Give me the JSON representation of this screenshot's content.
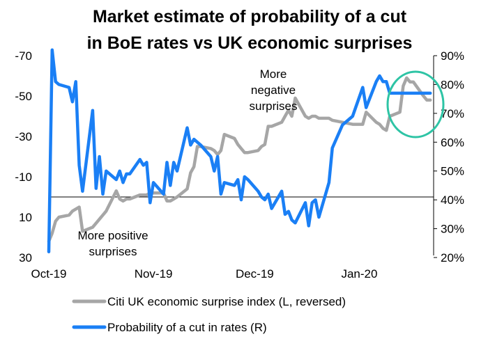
{
  "chart_data": {
    "type": "line",
    "title_line1": "Market estimate of probability of a cut",
    "title_line2": "in BoE rates vs UK economic surprises",
    "x_ticks": [
      "Oct-19",
      "Nov-19",
      "Dec-19",
      "Jan-20"
    ],
    "left_axis": {
      "reversed": true,
      "range": [
        -70,
        30
      ],
      "ticks": [
        "-70",
        "-50",
        "-30",
        "-10",
        "10",
        "30"
      ]
    },
    "right_axis": {
      "range": [
        20,
        90
      ],
      "unit": "%",
      "ticks": [
        "90%",
        "80%",
        "70%",
        "60%",
        "50%",
        "40%",
        "30%",
        "20%"
      ]
    },
    "annotations": {
      "negative": [
        "More",
        "negative",
        "surprises"
      ],
      "positive": [
        "More positive",
        "surprises"
      ]
    },
    "highlight_color": "#2ec4a5",
    "series": [
      {
        "name": "Citi UK economic surprise index (L, reversed)",
        "axis": "left",
        "color": "#a6a6a6",
        "x": [
          "2019-10-01",
          "2019-10-02",
          "2019-10-03",
          "2019-10-04",
          "2019-10-07",
          "2019-10-08",
          "2019-10-09",
          "2019-10-10",
          "2019-10-11",
          "2019-10-14",
          "2019-10-15",
          "2019-10-16",
          "2019-10-17",
          "2019-10-18",
          "2019-10-21",
          "2019-10-22",
          "2019-10-23",
          "2019-10-24",
          "2019-10-25",
          "2019-10-28",
          "2019-10-29",
          "2019-10-30",
          "2019-10-31",
          "2019-11-01",
          "2019-11-04",
          "2019-11-05",
          "2019-11-06",
          "2019-11-07",
          "2019-11-08",
          "2019-11-11",
          "2019-11-12",
          "2019-11-13",
          "2019-11-14",
          "2019-11-15",
          "2019-11-18",
          "2019-11-19",
          "2019-11-20",
          "2019-11-21",
          "2019-11-22",
          "2019-11-25",
          "2019-11-26",
          "2019-11-27",
          "2019-11-28",
          "2019-11-29",
          "2019-12-02",
          "2019-12-03",
          "2019-12-04",
          "2019-12-05",
          "2019-12-06",
          "2019-12-09",
          "2019-12-10",
          "2019-12-11",
          "2019-12-12",
          "2019-12-13",
          "2019-12-16",
          "2019-12-17",
          "2019-12-18",
          "2019-12-19",
          "2019-12-20",
          "2019-12-23",
          "2019-12-24",
          "2019-12-27",
          "2019-12-30",
          "2020-01-02",
          "2020-01-03",
          "2020-01-06",
          "2020-01-07",
          "2020-01-08",
          "2020-01-09",
          "2020-01-10",
          "2020-01-13",
          "2020-01-14",
          "2020-01-15",
          "2020-01-16",
          "2020-01-17",
          "2020-01-20",
          "2020-01-21",
          "2020-01-22"
        ],
        "values": [
          22,
          18,
          12,
          10,
          9,
          7,
          6,
          5,
          17,
          15,
          13,
          11,
          9,
          7,
          -3,
          1,
          2,
          1,
          1,
          -1,
          -1,
          -1,
          -2,
          -2,
          -2,
          2,
          2,
          1,
          0,
          -4,
          -12,
          -15,
          -25,
          -25,
          -24,
          -23,
          -21,
          -23,
          -31,
          -29,
          -26,
          -24,
          -22,
          -22,
          -23,
          -25,
          -26,
          -35,
          -35,
          -37,
          -40,
          -43,
          -40,
          -49,
          -40,
          -39,
          -40,
          -40,
          -39,
          -39,
          -38,
          -37,
          -36,
          -36,
          -42,
          -37,
          -36,
          -34,
          -33,
          -40,
          -42,
          -55,
          -59,
          -57,
          -57,
          -50,
          -48,
          -48
        ]
      },
      {
        "name": "Probability of a cut in rates (R)",
        "axis": "right",
        "color": "#1a7ff5",
        "x": [
          "2019-10-01",
          "2019-10-02",
          "2019-10-03",
          "2019-10-04",
          "2019-10-07",
          "2019-10-08",
          "2019-10-09",
          "2019-10-10",
          "2019-10-11",
          "2019-10-14",
          "2019-10-15",
          "2019-10-16",
          "2019-10-17",
          "2019-10-18",
          "2019-10-21",
          "2019-10-22",
          "2019-10-23",
          "2019-10-24",
          "2019-10-25",
          "2019-10-28",
          "2019-10-29",
          "2019-10-30",
          "2019-10-31",
          "2019-11-01",
          "2019-11-04",
          "2019-11-05",
          "2019-11-06",
          "2019-11-07",
          "2019-11-08",
          "2019-11-11",
          "2019-11-12",
          "2019-11-13",
          "2019-11-14",
          "2019-11-15",
          "2019-11-18",
          "2019-11-19",
          "2019-11-20",
          "2019-11-21",
          "2019-11-22",
          "2019-11-25",
          "2019-11-26",
          "2019-11-27",
          "2019-11-28",
          "2019-11-29",
          "2019-12-02",
          "2019-12-03",
          "2019-12-04",
          "2019-12-05",
          "2019-12-06",
          "2019-12-09",
          "2019-12-10",
          "2019-12-11",
          "2019-12-12",
          "2019-12-13",
          "2019-12-16",
          "2019-12-17",
          "2019-12-18",
          "2019-12-19",
          "2019-12-20",
          "2019-12-23",
          "2019-12-24",
          "2019-12-27",
          "2019-12-30",
          "2020-01-02",
          "2020-01-03",
          "2020-01-06",
          "2020-01-07",
          "2020-01-08",
          "2020-01-09",
          "2020-01-10",
          "2020-01-13",
          "2020-01-14",
          "2020-01-15",
          "2020-01-16",
          "2020-01-17",
          "2020-01-20",
          "2020-01-21",
          "2020-01-22"
        ],
        "values": [
          22,
          92,
          81,
          80,
          79,
          74,
          81,
          52,
          43,
          71,
          44,
          55,
          42,
          50,
          47,
          50,
          46,
          49,
          49,
          54,
          52,
          53,
          39,
          46,
          42,
          53,
          45,
          53,
          50,
          65,
          59,
          61,
          60,
          59,
          55,
          50,
          55,
          42,
          46,
          45,
          47,
          40,
          48,
          47,
          43,
          41,
          40,
          42,
          37,
          43,
          35,
          36,
          33,
          32,
          39,
          31,
          39,
          40,
          34,
          46,
          58,
          66,
          69,
          79,
          72,
          81,
          83,
          81,
          81,
          77,
          77,
          77,
          77,
          77,
          77,
          77,
          77,
          77
        ]
      }
    ],
    "legend": {
      "placement": "bottom"
    }
  }
}
